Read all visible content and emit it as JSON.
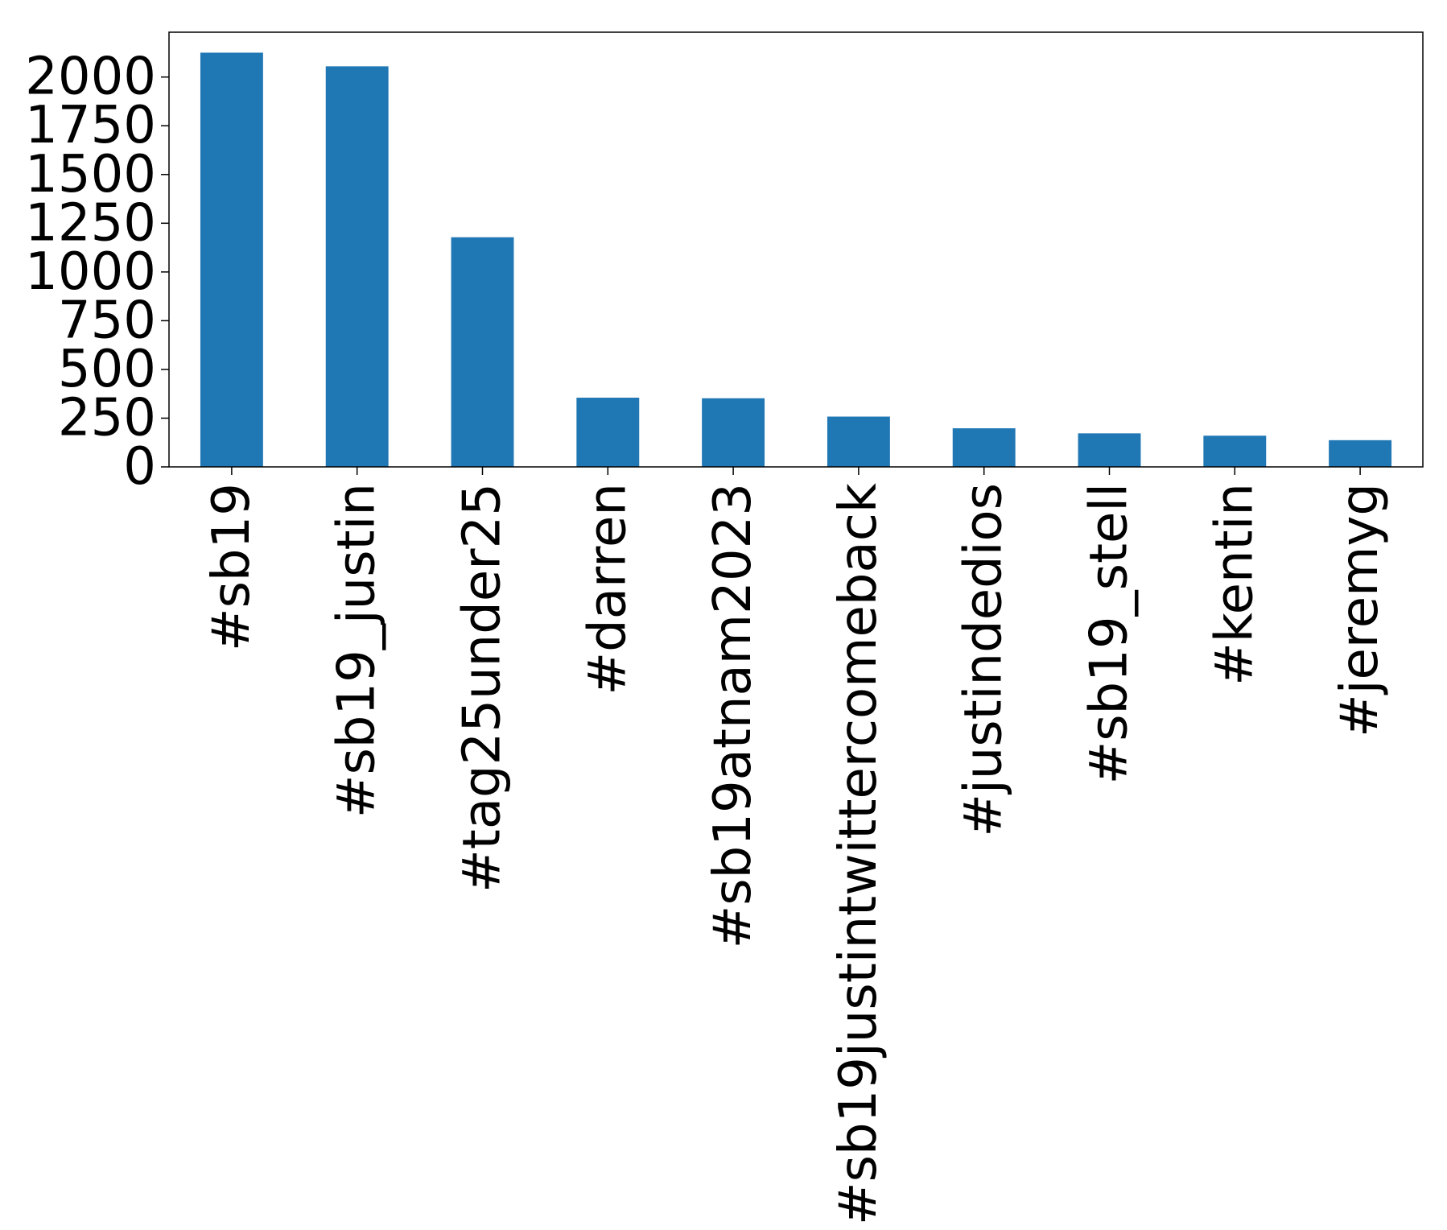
{
  "chart_data": {
    "type": "bar",
    "categories": [
      "#sb19",
      "#sb19_justin",
      "#tag25under25",
      "#darren",
      "#sb19atnam2023",
      "#sb19justintwittercomeback",
      "#justindedios",
      "#sb19_stell",
      "#kentin",
      "#jeremyg"
    ],
    "values": [
      2125,
      2055,
      1178,
      355,
      352,
      258,
      198,
      172,
      160,
      137
    ],
    "title": "",
    "xlabel": "",
    "ylabel": "",
    "ylim": [
      0,
      2230
    ],
    "yticks": [
      0,
      250,
      500,
      750,
      1000,
      1250,
      1500,
      1750,
      2000
    ],
    "grid": false,
    "legend": "none",
    "bar_color": "#1f77b4"
  }
}
